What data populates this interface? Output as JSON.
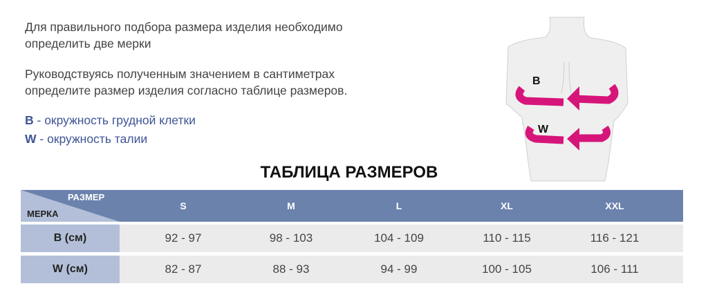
{
  "intro": {
    "line1": "Для правильного подбора размера изделия необходимо",
    "line2": "определить две мерки",
    "line3": "Руководствуясь полученным значением в сантиметрах",
    "line4": "определите размер изделия согласно таблице размеров."
  },
  "legend": [
    {
      "key": "B",
      "text": " - окружность грудной клетки"
    },
    {
      "key": "W",
      "text": " - окружность талии"
    }
  ],
  "figure": {
    "label_b": "B",
    "label_w": "W",
    "arrow_color": "#d6157a"
  },
  "table": {
    "title": "ТАБЛИЦА РАЗМЕРОВ",
    "corner_top": "РАЗМЕР",
    "corner_bottom": "МЕРКА",
    "sizes": [
      "S",
      "M",
      "L",
      "XL",
      "XXL"
    ],
    "rows": [
      {
        "label": "B (см)",
        "values": [
          "92 - 97",
          "98 - 103",
          "104 - 109",
          "110 - 115",
          "116 - 121"
        ]
      },
      {
        "label": "W (см)",
        "values": [
          "82 - 87",
          "88 - 93",
          "94 - 99",
          "100 - 105",
          "106 - 111"
        ]
      }
    ]
  },
  "colors": {
    "header": "#6b82ad",
    "first_col": "#b3bfd8",
    "cell": "#ebebeb",
    "legend": "#3e5496"
  }
}
